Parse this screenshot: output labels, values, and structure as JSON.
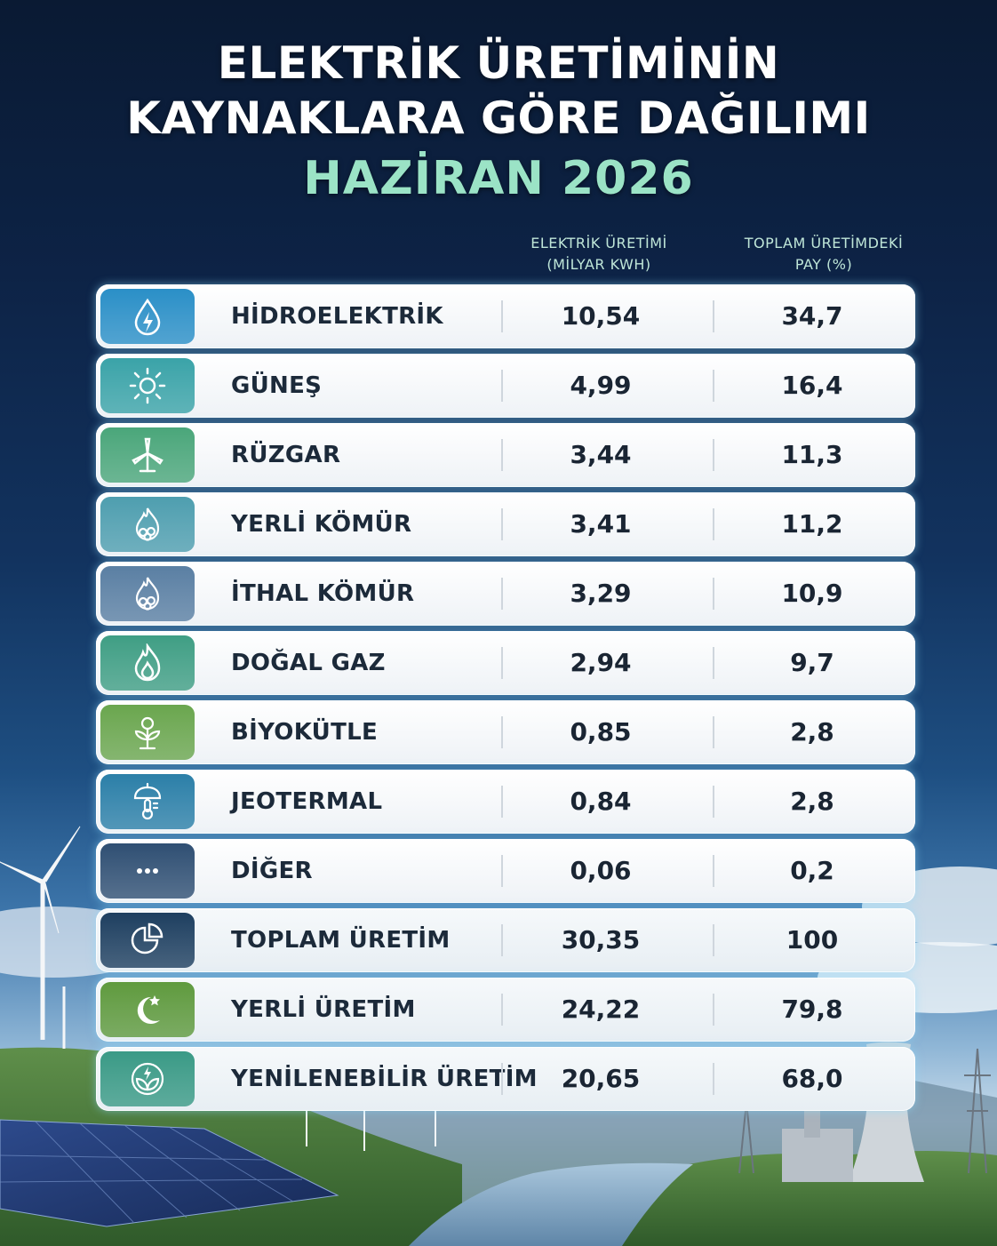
{
  "title": {
    "line1": "ELEKTRİK ÜRETİMİNİN",
    "line2": "KAYNAKLARA GÖRE DAĞILIMI",
    "subtitle": "HAZİRAN 2026"
  },
  "columns": {
    "production_line1": "ELEKTRİK ÜRETİMİ",
    "production_line2": "(MİLYAR KWH)",
    "share_line1": "TOPLAM ÜRETİMDEKİ",
    "share_line2": "PAY (%)"
  },
  "rows": [
    {
      "name": "HİDROELEKTRİK",
      "production": "10,54",
      "share": "34,7",
      "icon": "water-drop-bolt-icon",
      "color": "#2a8fc7"
    },
    {
      "name": "GÜNEŞ",
      "production": "4,99",
      "share": "16,4",
      "icon": "sun-icon",
      "color": "#3aa3a8"
    },
    {
      "name": "RÜZGAR",
      "production": "3,44",
      "share": "11,3",
      "icon": "wind-turbine-icon",
      "color": "#4aa67a"
    },
    {
      "name": "YERLİ KÖMÜR",
      "production": "3,41",
      "share": "11,2",
      "icon": "coal-flame-icon",
      "color": "#4e9eaf"
    },
    {
      "name": "İTHAL KÖMÜR",
      "production": "3,29",
      "share": "10,9",
      "icon": "coal-flame-icon",
      "color": "#5a7fa3"
    },
    {
      "name": "DOĞAL GAZ",
      "production": "2,94",
      "share": "9,7",
      "icon": "flame-icon",
      "color": "#3f9e84"
    },
    {
      "name": "BİYOKÜTLE",
      "production": "0,85",
      "share": "2,8",
      "icon": "plant-icon",
      "color": "#6aa64e"
    },
    {
      "name": "JEOTERMAL",
      "production": "0,84",
      "share": "2,8",
      "icon": "thermometer-icon",
      "color": "#2b7fa8"
    },
    {
      "name": "DİĞER",
      "production": "0,06",
      "share": "0,2",
      "icon": "more-dots-icon",
      "color": "#2f4f73"
    },
    {
      "name": "TOPLAM ÜRETİM",
      "production": "30,35",
      "share": "100",
      "icon": "pie-chart-icon",
      "color": "#1e3f60"
    },
    {
      "name": "YERLİ ÜRETİM",
      "production": "24,22",
      "share": "79,8",
      "icon": "crescent-star-icon",
      "color": "#5f9a3e"
    },
    {
      "name": "YENİLENEBİLİR ÜRETİM",
      "production": "20,65",
      "share": "68,0",
      "icon": "leaf-bolt-icon",
      "color": "#3a9a86"
    }
  ]
}
